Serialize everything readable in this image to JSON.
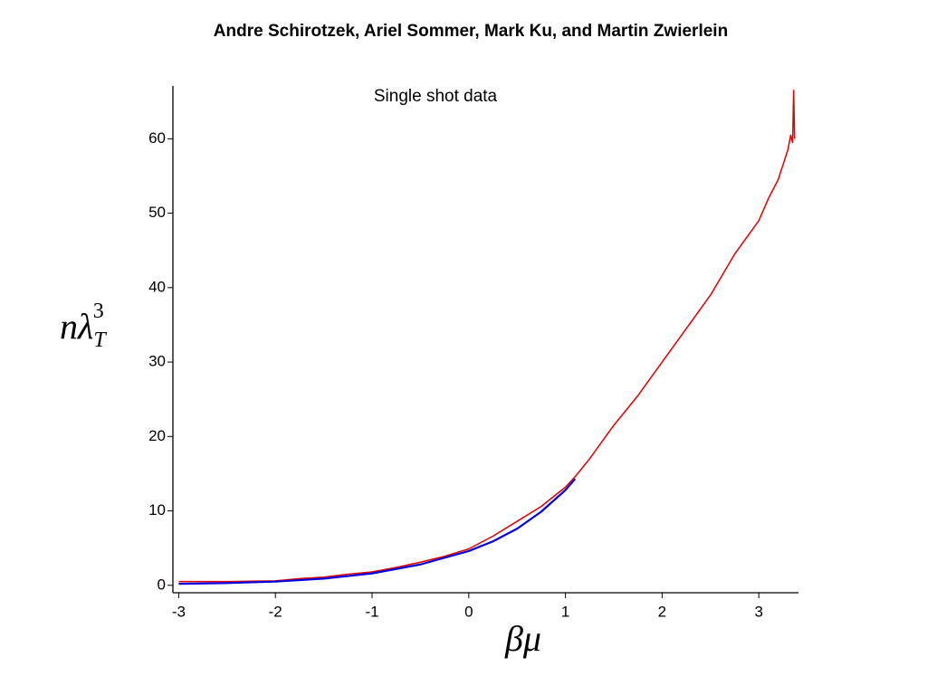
{
  "chart_data": {
    "type": "line",
    "title": "Andre Schirotzek, Ariel Sommer, Mark Ku, and Martin Zwierlein",
    "annotation": "Single shot data",
    "x_label": "βμ",
    "y_label": {
      "base": "nλ",
      "sub": "T",
      "sup": "3"
    },
    "xlim": [
      -3.06,
      3.41
    ],
    "ylim": [
      -1,
      67.1
    ],
    "xticks": [
      -3,
      -2,
      -1,
      0,
      1,
      2,
      3
    ],
    "yticks": [
      0,
      10,
      20,
      30,
      40,
      50,
      60
    ],
    "grid": false,
    "series": [
      {
        "color": "#e00000",
        "x": [
          -3,
          -2.75,
          -2.5,
          -2.25,
          -2,
          -1.75,
          -1.5,
          -1.25,
          -1,
          -0.75,
          -0.5,
          -0.25,
          0,
          0.25,
          0.5,
          0.75,
          1,
          1.1,
          1.25,
          1.5,
          1.75,
          2,
          2.25,
          2.5,
          2.75,
          3,
          3.1,
          3.2,
          3.25,
          3.3,
          3.33,
          3.35,
          3.36,
          3.37
        ],
        "values": [
          0.5,
          0.5,
          0.5,
          0.55,
          0.6,
          0.9,
          1.1,
          1.5,
          1.8,
          2.4,
          3.1,
          3.9,
          4.9,
          6.6,
          8.6,
          10.6,
          13.2,
          14.6,
          17,
          21.5,
          25.5,
          30,
          34.5,
          39,
          44.5,
          49,
          52,
          54.5,
          56.5,
          58.5,
          60.5,
          59.5,
          66.5,
          60
        ]
      },
      {
        "color": "#0000e0",
        "x": [
          -3,
          -2.5,
          -2,
          -1.5,
          -1,
          -0.5,
          0,
          0.25,
          0.5,
          0.75,
          1,
          1.1
        ],
        "values": [
          0.2,
          0.3,
          0.5,
          0.9,
          1.6,
          2.8,
          4.6,
          5.9,
          7.6,
          9.9,
          12.8,
          14.3
        ]
      }
    ]
  }
}
